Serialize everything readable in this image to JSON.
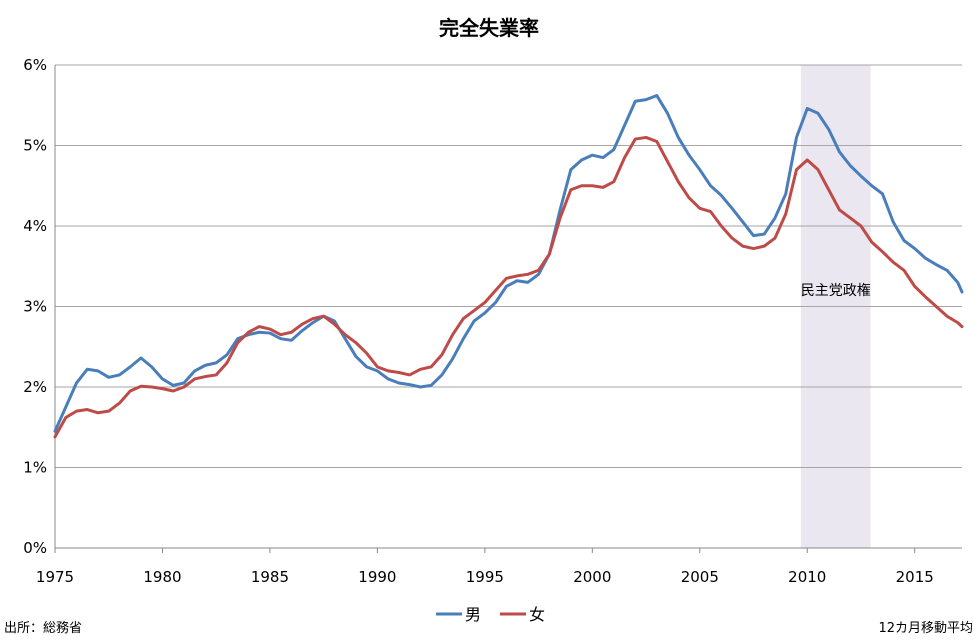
{
  "chart_data": {
    "type": "line",
    "title": "完全失業率",
    "xlabel": "",
    "ylabel": "",
    "xlim": [
      1975,
      2017.2
    ],
    "ylim": [
      0,
      6
    ],
    "y_ticks": [
      "0%",
      "1%",
      "2%",
      "3%",
      "4%",
      "5%",
      "6%"
    ],
    "y_tick_values": [
      0,
      1,
      2,
      3,
      4,
      5,
      6
    ],
    "x_ticks": [
      "1975",
      "1980",
      "1985",
      "1990",
      "1995",
      "2000",
      "2005",
      "2010",
      "2015"
    ],
    "x_tick_values": [
      1975,
      1980,
      1985,
      1990,
      1995,
      2000,
      2005,
      2010,
      2015
    ],
    "grid": true,
    "shaded_region": {
      "label": "民主党政権",
      "x_start": 2009.7,
      "x_end": 2012.95,
      "color": "#eae7f0"
    },
    "series": [
      {
        "name": "男",
        "color": "#4a7ebb",
        "x": [
          1975,
          1975.5,
          1976,
          1976.5,
          1977,
          1977.5,
          1978,
          1978.5,
          1979,
          1979.5,
          1980,
          1980.5,
          1981,
          1981.5,
          1982,
          1982.5,
          1983,
          1983.5,
          1984,
          1984.5,
          1985,
          1985.5,
          1986,
          1986.5,
          1987,
          1987.5,
          1988,
          1988.5,
          1989,
          1989.5,
          1990,
          1990.5,
          1991,
          1991.5,
          1992,
          1992.5,
          1993,
          1993.5,
          1994,
          1994.5,
          1995,
          1995.5,
          1996,
          1996.5,
          1997,
          1997.5,
          1998,
          1998.5,
          1999,
          1999.5,
          2000,
          2000.5,
          2001,
          2001.5,
          2002,
          2002.5,
          2003,
          2003.5,
          2004,
          2004.5,
          2005,
          2005.5,
          2006,
          2006.5,
          2007,
          2007.5,
          2008,
          2008.5,
          2009,
          2009.5,
          2010,
          2010.5,
          2011,
          2011.5,
          2012,
          2012.5,
          2013,
          2013.5,
          2014,
          2014.5,
          2015,
          2015.5,
          2016,
          2016.5,
          2017,
          2017.2
        ],
        "values": [
          1.45,
          1.75,
          2.05,
          2.22,
          2.2,
          2.12,
          2.15,
          2.25,
          2.36,
          2.25,
          2.1,
          2.02,
          2.05,
          2.2,
          2.27,
          2.3,
          2.4,
          2.6,
          2.65,
          2.68,
          2.67,
          2.6,
          2.58,
          2.7,
          2.8,
          2.88,
          2.82,
          2.6,
          2.38,
          2.25,
          2.2,
          2.1,
          2.05,
          2.03,
          2.0,
          2.02,
          2.15,
          2.35,
          2.6,
          2.82,
          2.92,
          3.05,
          3.25,
          3.32,
          3.3,
          3.4,
          3.65,
          4.2,
          4.7,
          4.82,
          4.88,
          4.85,
          4.95,
          5.25,
          5.55,
          5.57,
          5.62,
          5.4,
          5.1,
          4.88,
          4.7,
          4.5,
          4.38,
          4.22,
          4.05,
          3.88,
          3.9,
          4.1,
          4.4,
          5.1,
          5.46,
          5.4,
          5.2,
          4.92,
          4.75,
          4.62,
          4.5,
          4.4,
          4.05,
          3.82,
          3.72,
          3.6,
          3.52,
          3.45,
          3.3,
          3.18
        ]
      },
      {
        "name": "女",
        "color": "#be4b48",
        "x": [
          1975,
          1975.5,
          1976,
          1976.5,
          1977,
          1977.5,
          1978,
          1978.5,
          1979,
          1979.5,
          1980,
          1980.5,
          1981,
          1981.5,
          1982,
          1982.5,
          1983,
          1983.5,
          1984,
          1984.5,
          1985,
          1985.5,
          1986,
          1986.5,
          1987,
          1987.5,
          1988,
          1988.5,
          1989,
          1989.5,
          1990,
          1990.5,
          1991,
          1991.5,
          1992,
          1992.5,
          1993,
          1993.5,
          1994,
          1994.5,
          1995,
          1995.5,
          1996,
          1996.5,
          1997,
          1997.5,
          1998,
          1998.5,
          1999,
          1999.5,
          2000,
          2000.5,
          2001,
          2001.5,
          2002,
          2002.5,
          2003,
          2003.5,
          2004,
          2004.5,
          2005,
          2005.5,
          2006,
          2006.5,
          2007,
          2007.5,
          2008,
          2008.5,
          2009,
          2009.5,
          2010,
          2010.5,
          2011,
          2011.5,
          2012,
          2012.5,
          2013,
          2013.5,
          2014,
          2014.5,
          2015,
          2015.5,
          2016,
          2016.5,
          2017,
          2017.2
        ],
        "values": [
          1.38,
          1.62,
          1.7,
          1.72,
          1.68,
          1.7,
          1.8,
          1.95,
          2.01,
          2.0,
          1.98,
          1.95,
          2.0,
          2.1,
          2.13,
          2.15,
          2.3,
          2.55,
          2.68,
          2.75,
          2.72,
          2.65,
          2.68,
          2.78,
          2.85,
          2.88,
          2.78,
          2.65,
          2.55,
          2.42,
          2.25,
          2.2,
          2.18,
          2.15,
          2.22,
          2.25,
          2.4,
          2.65,
          2.85,
          2.95,
          3.05,
          3.2,
          3.35,
          3.38,
          3.4,
          3.45,
          3.65,
          4.1,
          4.45,
          4.5,
          4.5,
          4.48,
          4.55,
          4.85,
          5.08,
          5.1,
          5.05,
          4.8,
          4.55,
          4.35,
          4.22,
          4.18,
          4.0,
          3.85,
          3.75,
          3.72,
          3.75,
          3.85,
          4.15,
          4.7,
          4.82,
          4.7,
          4.45,
          4.2,
          4.1,
          4.0,
          3.8,
          3.68,
          3.55,
          3.45,
          3.25,
          3.12,
          3.0,
          2.88,
          2.8,
          2.75
        ]
      }
    ]
  },
  "region_label": "民主党政権",
  "source_note": "出所：総務省",
  "average_note": "12カ月移動平均",
  "legend": {
    "male": "男",
    "female": "女",
    "male_color": "#4a7ebb",
    "female_color": "#be4b48"
  }
}
